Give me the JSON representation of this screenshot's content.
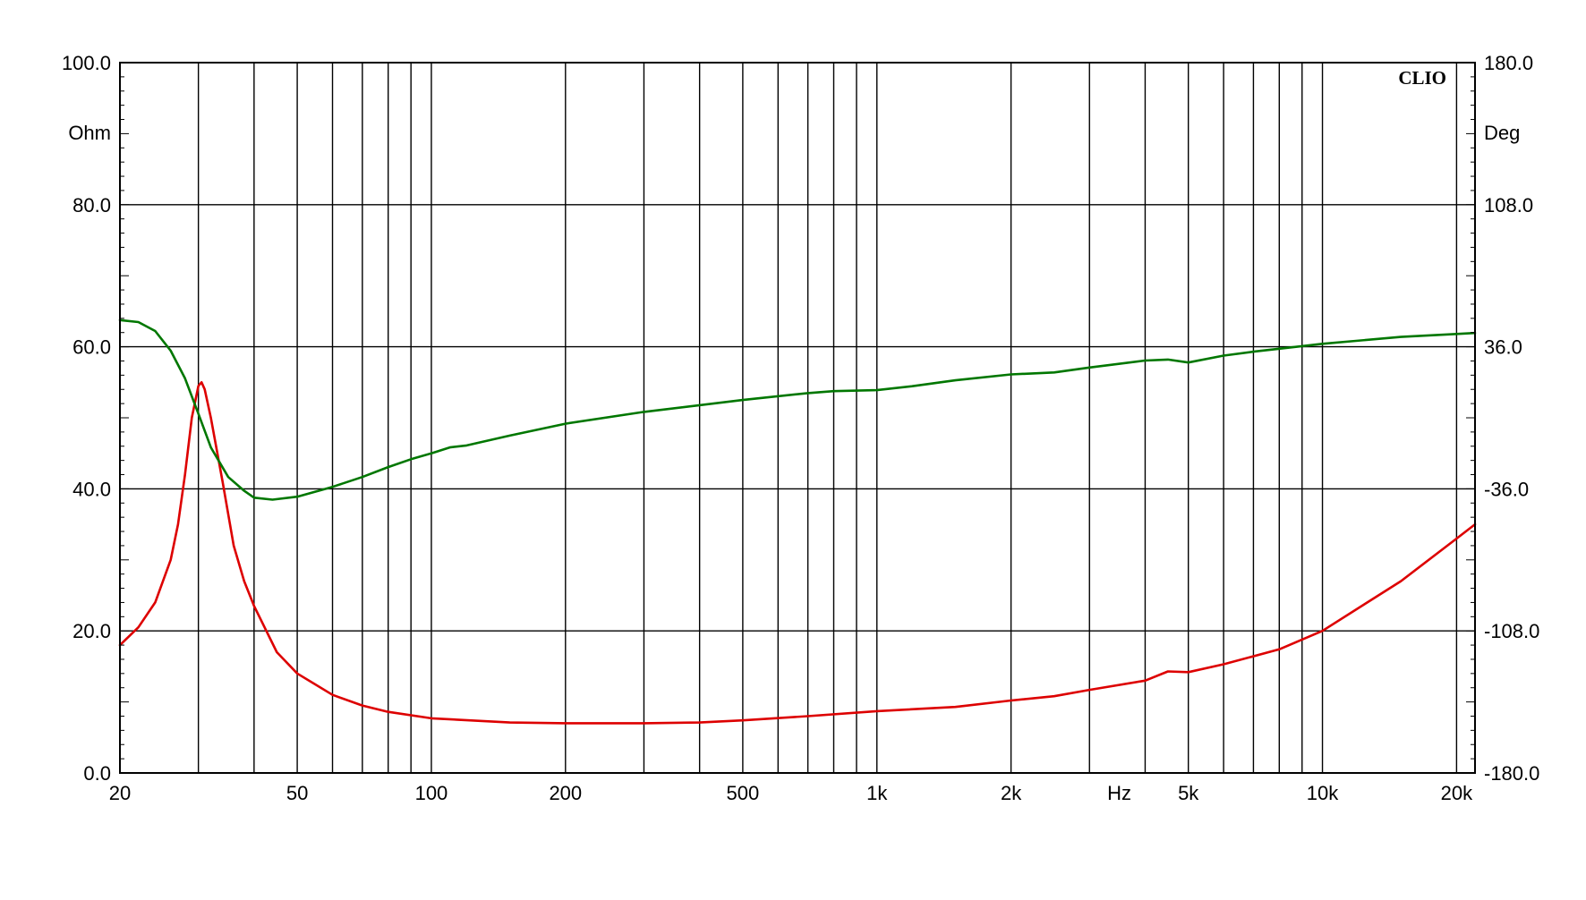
{
  "chart_data": {
    "type": "line",
    "brand": "CLIO",
    "x_unit_label": "Hz",
    "x_scale": "log",
    "xlim": [
      20,
      22000
    ],
    "x_tick_labels": [
      {
        "value": 20,
        "label": "20"
      },
      {
        "value": 50,
        "label": "50"
      },
      {
        "value": 100,
        "label": "100"
      },
      {
        "value": 200,
        "label": "200"
      },
      {
        "value": 500,
        "label": "500"
      },
      {
        "value": 1000,
        "label": "1k"
      },
      {
        "value": 2000,
        "label": "2k"
      },
      {
        "value": 5000,
        "label": "5k"
      },
      {
        "value": 10000,
        "label": "10k"
      },
      {
        "value": 20000,
        "label": "20k"
      }
    ],
    "x_gridlines": [
      20,
      30,
      40,
      50,
      60,
      70,
      80,
      90,
      100,
      200,
      300,
      400,
      500,
      600,
      700,
      800,
      900,
      1000,
      2000,
      3000,
      4000,
      5000,
      6000,
      7000,
      8000,
      9000,
      10000,
      20000
    ],
    "y_left": {
      "unit_label": "Ohm",
      "ylim": [
        0,
        100
      ],
      "ticks": [
        {
          "value": 0,
          "label": "0.0"
        },
        {
          "value": 20,
          "label": "20.0"
        },
        {
          "value": 40,
          "label": "40.0"
        },
        {
          "value": 60,
          "label": "60.0"
        },
        {
          "value": 80,
          "label": "80.0"
        },
        {
          "value": 100,
          "label": "100.0"
        }
      ]
    },
    "y_right": {
      "unit_label": "Deg",
      "ylim": [
        -180,
        180
      ],
      "ticks": [
        {
          "value": -180,
          "label": "-180.0"
        },
        {
          "value": -108,
          "label": "-108.0"
        },
        {
          "value": -36,
          "label": "-36.0"
        },
        {
          "value": 36,
          "label": "36.0"
        },
        {
          "value": 108,
          "label": "108.0"
        },
        {
          "value": 180,
          "label": "180.0"
        }
      ]
    },
    "grid": true,
    "series": [
      {
        "axis": "left",
        "color": "#dd0000",
        "points": [
          [
            20,
            18
          ],
          [
            22,
            20.5
          ],
          [
            24,
            24
          ],
          [
            26,
            30
          ],
          [
            27,
            35
          ],
          [
            28,
            42
          ],
          [
            29,
            50
          ],
          [
            30,
            54.5
          ],
          [
            30.5,
            55
          ],
          [
            31,
            54
          ],
          [
            32,
            50
          ],
          [
            34,
            41
          ],
          [
            36,
            32
          ],
          [
            38,
            27
          ],
          [
            40,
            23.5
          ],
          [
            45,
            17
          ],
          [
            50,
            14
          ],
          [
            60,
            11
          ],
          [
            70,
            9.5
          ],
          [
            80,
            8.6
          ],
          [
            100,
            7.7
          ],
          [
            150,
            7.1
          ],
          [
            200,
            7.0
          ],
          [
            300,
            7.0
          ],
          [
            400,
            7.1
          ],
          [
            500,
            7.4
          ],
          [
            700,
            8.0
          ],
          [
            1000,
            8.7
          ],
          [
            1500,
            9.3
          ],
          [
            2000,
            10.2
          ],
          [
            2500,
            10.8
          ],
          [
            3000,
            11.7
          ],
          [
            4000,
            13.0
          ],
          [
            4500,
            14.3
          ],
          [
            5000,
            14.2
          ],
          [
            6000,
            15.3
          ],
          [
            8000,
            17.4
          ],
          [
            10000,
            20
          ],
          [
            15000,
            27
          ],
          [
            20000,
            33
          ],
          [
            22000,
            35
          ]
        ]
      },
      {
        "axis": "right",
        "color": "#007700",
        "points": [
          [
            20,
            49.5
          ],
          [
            22,
            48.5
          ],
          [
            24,
            44
          ],
          [
            26,
            34
          ],
          [
            28,
            20
          ],
          [
            30,
            2
          ],
          [
            32,
            -15
          ],
          [
            35,
            -30
          ],
          [
            38,
            -37
          ],
          [
            40,
            -40.5
          ],
          [
            44,
            -41.5
          ],
          [
            50,
            -40
          ],
          [
            60,
            -35
          ],
          [
            70,
            -30
          ],
          [
            80,
            -25
          ],
          [
            90,
            -21
          ],
          [
            100,
            -18
          ],
          [
            110,
            -15
          ],
          [
            120,
            -14
          ],
          [
            150,
            -9
          ],
          [
            200,
            -3
          ],
          [
            300,
            3
          ],
          [
            500,
            9
          ],
          [
            700,
            12.5
          ],
          [
            800,
            13.5
          ],
          [
            1000,
            14
          ],
          [
            1200,
            16
          ],
          [
            1500,
            19
          ],
          [
            2000,
            22
          ],
          [
            2500,
            23
          ],
          [
            3000,
            25.5
          ],
          [
            4000,
            29
          ],
          [
            4500,
            29.5
          ],
          [
            5000,
            28
          ],
          [
            6000,
            31.5
          ],
          [
            7000,
            33.5
          ],
          [
            8000,
            35
          ],
          [
            10000,
            37.5
          ],
          [
            15000,
            41
          ],
          [
            20000,
            42.5
          ],
          [
            22000,
            43
          ]
        ]
      }
    ]
  }
}
